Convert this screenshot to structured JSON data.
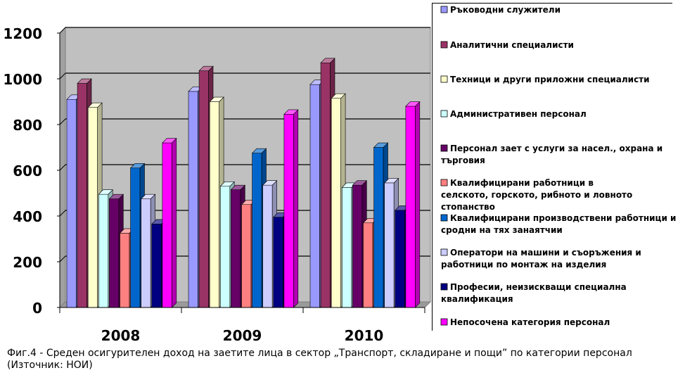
{
  "chart_data": {
    "type": "bar",
    "categories": [
      "2008",
      "2009",
      "2010"
    ],
    "ylim": [
      0,
      1200
    ],
    "yticks": [
      0,
      200,
      400,
      600,
      800,
      1000,
      1200
    ],
    "grid": true,
    "legend_position": "right",
    "series": [
      {
        "name": "Ръководни служители",
        "color": "#9999FF",
        "values": [
          910,
          945,
          975
        ]
      },
      {
        "name": "Аналитични специалисти",
        "color": "#993366",
        "values": [
          980,
          1035,
          1070
        ]
      },
      {
        "name": "Техници и други приложни специалисти",
        "color": "#FFFFCC",
        "values": [
          875,
          900,
          915
        ]
      },
      {
        "name": "Административен персонал",
        "color": "#CCFFFF",
        "values": [
          495,
          530,
          525
        ]
      },
      {
        "name": "Персонал зает с услуги за насел., охрана и търговия",
        "color": "#660066",
        "values": [
          475,
          515,
          535
        ]
      },
      {
        "name": "Квалифицирани работници в селското, горското, рибното и ловното стопанство",
        "color": "#FF8080",
        "values": [
          325,
          450,
          370
        ]
      },
      {
        "name": "Квалифицирани производствени работници и сродни на тях занаятчии",
        "color": "#0066CC",
        "values": [
          610,
          675,
          700
        ]
      },
      {
        "name": "Оператори на машини и съоръжения и работници по монтаж на изделия",
        "color": "#CCCCFF",
        "values": [
          475,
          535,
          545
        ]
      },
      {
        "name": "Професии, неизискващи специална квалификация",
        "color": "#000080",
        "values": [
          365,
          395,
          425
        ]
      },
      {
        "name": "Непосочена категория персонал",
        "color": "#FF00FF",
        "values": [
          720,
          845,
          880
        ]
      }
    ]
  },
  "caption": "Фиг.4 - Среден осигурителен доход на заетите лица в сектор „Транспорт, складиране и пощи” по категории персонал (Източник: НОИ)"
}
